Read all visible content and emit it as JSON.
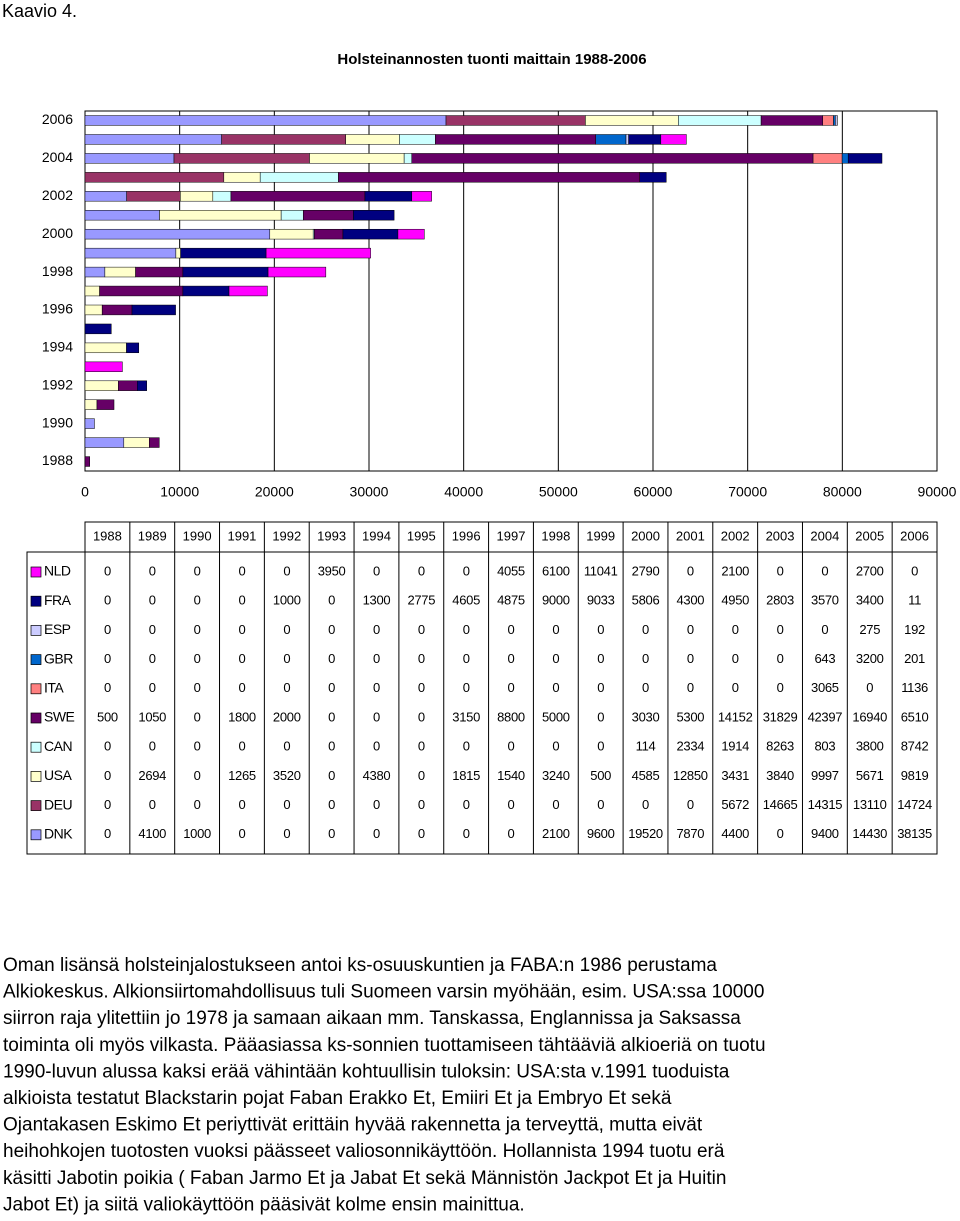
{
  "heading": "Kaavio 4.",
  "chart_data": {
    "type": "stacked-barh",
    "title": "Holsteinannosten tuonti maittain 1988-2006",
    "categories": [
      "1988",
      "1989",
      "1990",
      "1991",
      "1992",
      "1993",
      "1994",
      "1995",
      "1996",
      "1997",
      "1998",
      "1999",
      "2000",
      "2001",
      "2002",
      "2003",
      "2004",
      "2005",
      "2006"
    ],
    "series": [
      {
        "name": "DNK",
        "color": "#9999ff",
        "values": [
          0,
          4100,
          1000,
          0,
          0,
          0,
          0,
          0,
          0,
          0,
          2100,
          9600,
          19520,
          7870,
          4400,
          0,
          9400,
          14430,
          38135
        ]
      },
      {
        "name": "DEU",
        "color": "#993366",
        "values": [
          0,
          0,
          0,
          0,
          0,
          0,
          0,
          0,
          0,
          0,
          0,
          0,
          0,
          0,
          5672,
          14665,
          14315,
          13110,
          14724
        ]
      },
      {
        "name": "USA",
        "color": "#ffffcc",
        "values": [
          0,
          2694,
          0,
          1265,
          3520,
          0,
          4380,
          0,
          1815,
          1540,
          3240,
          500,
          4585,
          12850,
          3431,
          3840,
          9997,
          5671,
          9819
        ]
      },
      {
        "name": "CAN",
        "color": "#ccffff",
        "values": [
          0,
          0,
          0,
          0,
          0,
          0,
          0,
          0,
          0,
          0,
          0,
          0,
          114,
          2334,
          1914,
          8263,
          803,
          3800,
          8742
        ]
      },
      {
        "name": "SWE",
        "color": "#660066",
        "values": [
          500,
          1050,
          0,
          1800,
          2000,
          0,
          0,
          0,
          3150,
          8800,
          5000,
          0,
          3030,
          5300,
          14152,
          31829,
          42397,
          16940,
          6510
        ]
      },
      {
        "name": "ITA",
        "color": "#ff8080",
        "values": [
          0,
          0,
          0,
          0,
          0,
          0,
          0,
          0,
          0,
          0,
          0,
          0,
          0,
          0,
          0,
          0,
          3065,
          0,
          1136
        ]
      },
      {
        "name": "GBR",
        "color": "#0066cc",
        "values": [
          0,
          0,
          0,
          0,
          0,
          0,
          0,
          0,
          0,
          0,
          0,
          0,
          0,
          0,
          0,
          0,
          643,
          3200,
          201
        ]
      },
      {
        "name": "ESP",
        "color": "#ccccff",
        "values": [
          0,
          0,
          0,
          0,
          0,
          0,
          0,
          0,
          0,
          0,
          0,
          0,
          0,
          0,
          0,
          0,
          0,
          275,
          192
        ]
      },
      {
        "name": "FRA",
        "color": "#000080",
        "values": [
          0,
          0,
          0,
          0,
          1000,
          0,
          1300,
          2775,
          4605,
          4875,
          9000,
          9033,
          5806,
          4300,
          4950,
          2803,
          3570,
          3400,
          11
        ]
      },
      {
        "name": "NLD",
        "color": "#ff00ff",
        "values": [
          0,
          0,
          0,
          0,
          0,
          3950,
          0,
          0,
          0,
          4055,
          6100,
          11041,
          2790,
          0,
          2100,
          0,
          0,
          2700,
          0
        ]
      }
    ],
    "xlim": [
      0,
      90000
    ],
    "xticks": [
      0,
      10000,
      20000,
      30000,
      40000,
      50000,
      60000,
      70000,
      80000,
      90000
    ],
    "grid": true
  },
  "paragraph": [
    "Oman lisänsä holsteinjalostukseen antoi ks-osuuskuntien ja FABA:n 1986 perustama",
    "Alkiokeskus. Alkionsiirtomahdollisuus tuli Suomeen varsin myöhään, esim. USA:ssa 10000",
    "siirron raja ylitettiin jo 1978 ja samaan aikaan mm. Tanskassa, Englannissa ja Saksassa",
    "toiminta oli myös vilkasta. Pääasiassa ks-sonnien tuottamiseen tähtääviä alkioeriä on tuotu",
    "1990-luvun alussa kaksi erää vähintään kohtuullisin tuloksin: USA:sta v.1991 tuoduista",
    "alkioista testatut Blackstarin pojat Faban Erakko Et, Emiiri Et ja Embryo Et sekä",
    "Ojantakasen Eskimo Et periyttivät erittäin hyvää rakennetta ja terveyttä, mutta eivät",
    "heihohkojen tuotosten vuoksi päässeet valiosonnikäyttöön. Hollannista 1994 tuotu erä",
    "käsitti Jabotin poikia ( Faban Jarmo Et ja Jabat Et sekä Männistön Jackpot Et ja Huitin",
    "Jabot Et) ja siitä valiokäyttöön pääsivät kolme ensin mainittua."
  ]
}
